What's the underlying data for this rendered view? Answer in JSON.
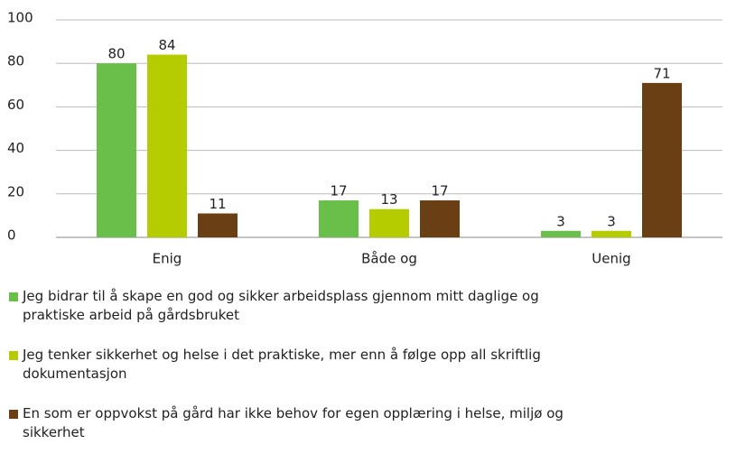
{
  "chart_data": {
    "type": "bar",
    "categories": [
      "Enig",
      "Både og",
      "Uenig"
    ],
    "series": [
      {
        "name": "Jeg bidrar til å skape en god og sikker arbeidsplass gjennom mitt daglige og praktiske arbeid på gårdsbruket",
        "color": "#6abf4b",
        "values": [
          80,
          17,
          3
        ]
      },
      {
        "name": "Jeg tenker sikkerhet og helse i det praktiske, mer enn å følge opp all skriftlig dokumentasjon",
        "color": "#b5cc00",
        "values": [
          84,
          13,
          3
        ]
      },
      {
        "name": "En som er oppvokst på gård har ikke behov for egen opplæring i helse, miljø og sikkerhet",
        "color": "#6b3f14",
        "values": [
          11,
          17,
          71
        ]
      }
    ],
    "ylim": [
      0,
      100
    ],
    "yticks": [
      0,
      20,
      40,
      60,
      80,
      100
    ],
    "grid": true,
    "legend": "bottom"
  }
}
